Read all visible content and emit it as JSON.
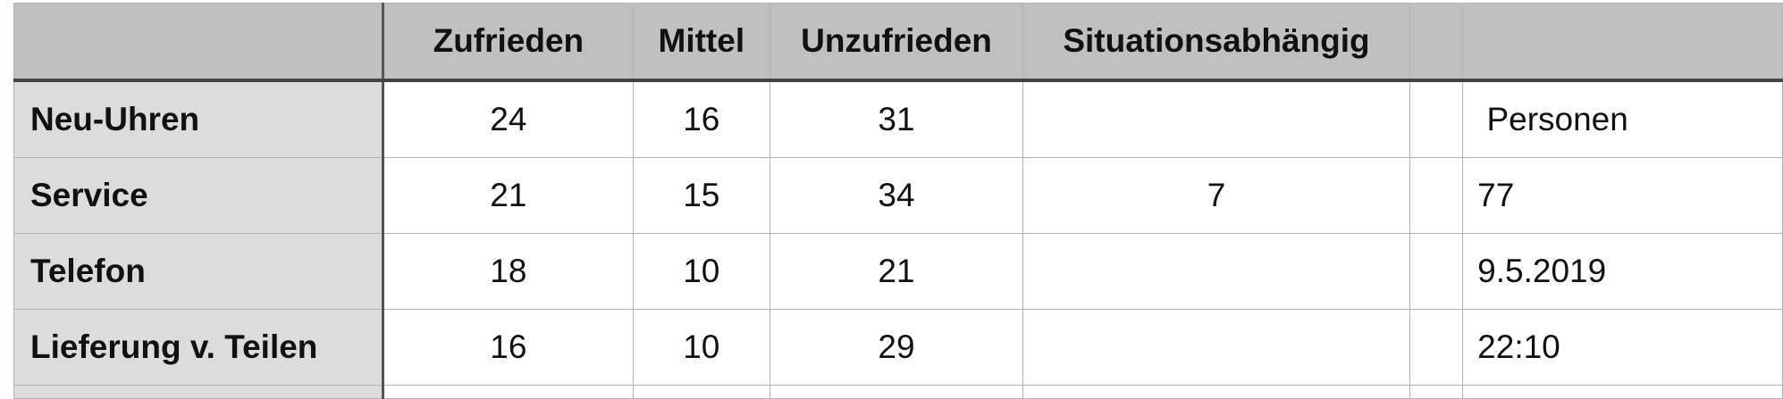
{
  "table": {
    "headers": [
      "",
      "Zufrieden",
      "Mittel",
      "Unzufrieden",
      "Situationsabhängig",
      "",
      ""
    ],
    "rows": [
      {
        "label": "Neu-Uhren",
        "cells": [
          "24",
          "16",
          "31",
          "",
          "",
          " Personen"
        ]
      },
      {
        "label": "Service",
        "cells": [
          "21",
          "15",
          "34",
          "7",
          "",
          "77"
        ]
      },
      {
        "label": "Telefon",
        "cells": [
          "18",
          "10",
          "21",
          "",
          "",
          "9.5.2019"
        ]
      },
      {
        "label": "Lieferung v. Teilen",
        "cells": [
          "16",
          "10",
          "29",
          "",
          "",
          "22:10"
        ]
      }
    ]
  }
}
